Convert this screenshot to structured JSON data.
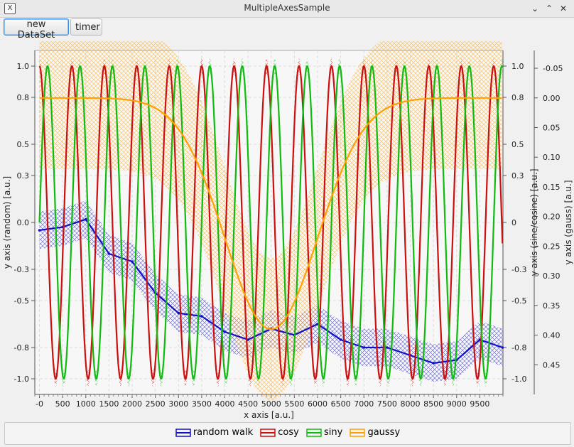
{
  "window": {
    "title": "MultipleAxesSample",
    "icon_glyph": "X"
  },
  "toolbar": {
    "new_dataset_label": "new DataSet",
    "timer_label": "timer"
  },
  "chart_data": {
    "type": "line",
    "xlabel": "x axis [a.u.]",
    "ylabel_left": "y axis (random) [a.u.]",
    "ylabel_right1": "y axis (sine/cosine) [a.u.]",
    "ylabel_right2": "y axis (gauss) [a.u.]",
    "xlim": [
      -100,
      10000
    ],
    "ylim_left": [
      -1.1,
      1.1
    ],
    "ylim_right1": [
      -1.1,
      1.1
    ],
    "ylim_right2": [
      -0.08,
      0.5
    ],
    "x_ticks": [
      0,
      500,
      1000,
      1500,
      2000,
      2500,
      3000,
      3500,
      4000,
      4500,
      5000,
      5500,
      6000,
      6500,
      7000,
      7500,
      8000,
      8500,
      9000,
      9500
    ],
    "x_tick_labels": [
      "-0",
      "500",
      "1000",
      "1500",
      "2000",
      "2500",
      "3000",
      "3500",
      "4000",
      "4500",
      "5000",
      "5500",
      "6000",
      "6500",
      "7000",
      "7500",
      "8000",
      "8500",
      "9000",
      "9500"
    ],
    "y_left_ticks": [
      "1.0",
      "0.8",
      "0.5",
      "0.3",
      "0.0",
      "-0.3",
      "-0.5",
      "-0.8",
      "-1.0"
    ],
    "y_right1_ticks": [
      "1.0",
      "0.8",
      "0.5",
      "0.3",
      "0",
      "-0.3",
      "-0.5",
      "-0.8",
      "-1.0"
    ],
    "y_right2_ticks": [
      "-0.05",
      "0.00",
      "0.05",
      "0.10",
      "0.15",
      "0.20",
      "0.25",
      "0.30",
      "0.35",
      "0.40",
      "0.45"
    ],
    "series": [
      {
        "name": "random walk",
        "color": "#1010c8",
        "axis": "left",
        "x": [
          0,
          500,
          1000,
          1500,
          2000,
          2500,
          3000,
          3500,
          4000,
          4500,
          5000,
          5500,
          6000,
          6500,
          7000,
          7500,
          8000,
          8500,
          9000,
          9500,
          9990
        ],
        "y": [
          -0.05,
          -0.03,
          0.02,
          -0.2,
          -0.25,
          -0.45,
          -0.58,
          -0.6,
          -0.7,
          -0.75,
          -0.68,
          -0.72,
          -0.65,
          -0.75,
          -0.8,
          -0.8,
          -0.85,
          -0.9,
          -0.88,
          -0.75,
          -0.8
        ]
      },
      {
        "name": "cosy",
        "color": "#cc1010",
        "axis": "right1",
        "function": "cos",
        "period": 700,
        "amplitude": 1.0
      },
      {
        "name": "siny",
        "color": "#10bb10",
        "axis": "right1",
        "function": "sin",
        "period": 700,
        "amplitude": 1.0
      },
      {
        "name": "gaussy",
        "color": "#ffa000",
        "axis": "right2",
        "function": "gauss",
        "center": 5000,
        "sigma": 1000,
        "amplitude": 0.39
      }
    ]
  },
  "legend": {
    "items": [
      {
        "label": "random walk",
        "color": "#1010c8"
      },
      {
        "label": "cosy",
        "color": "#cc1010"
      },
      {
        "label": "siny",
        "color": "#10bb10"
      },
      {
        "label": "gaussy",
        "color": "#ffa000"
      }
    ]
  }
}
